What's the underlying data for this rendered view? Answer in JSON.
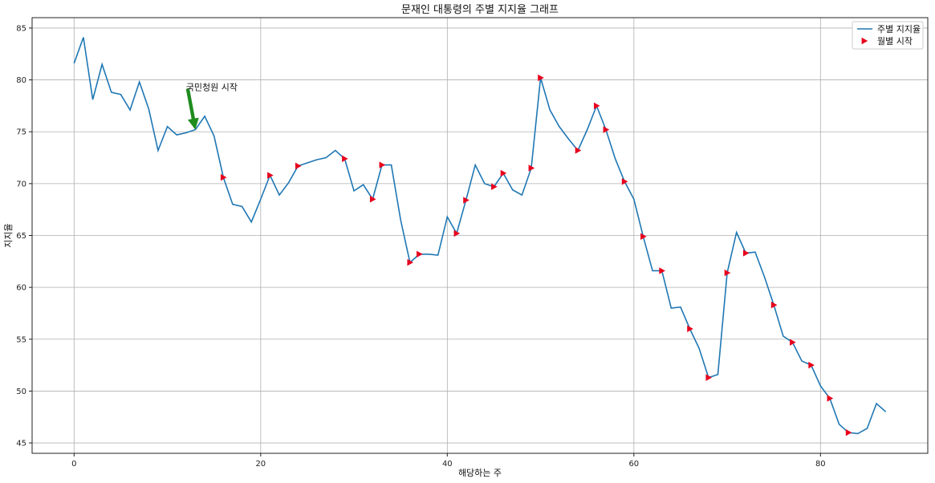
{
  "chart_data": {
    "type": "line",
    "title": "문재인 대통령의 주별 지지율 그래프",
    "xlabel": "해당하는 주",
    "ylabel": "지지율",
    "xlim": [
      -4.5,
      91.5
    ],
    "ylim": [
      44,
      86
    ],
    "xticks": [
      0,
      20,
      40,
      60,
      80
    ],
    "yticks": [
      45,
      50,
      55,
      60,
      65,
      70,
      75,
      80,
      85
    ],
    "grid": true,
    "legend_position": "top-right",
    "colors": {
      "line": "#1f77b4",
      "marker": "#e8001c",
      "arrow": "#1e8c1e",
      "grid": "#b0b0b0"
    },
    "series": [
      {
        "name": "주별 지지율",
        "values": [
          81.6,
          84.1,
          78.1,
          81.5,
          78.8,
          78.6,
          77.1,
          79.8,
          77.2,
          73.2,
          75.5,
          74.7,
          74.9,
          75.2,
          76.5,
          74.6,
          70.6,
          68.0,
          67.8,
          66.3,
          68.5,
          70.8,
          68.9,
          70.1,
          71.7,
          72.0,
          72.3,
          72.5,
          73.2,
          72.4,
          69.3,
          69.9,
          68.5,
          71.8,
          71.8,
          66.5,
          62.4,
          63.2,
          63.2,
          63.1,
          66.8,
          65.2,
          68.4,
          71.8,
          70.0,
          69.7,
          71.0,
          69.4,
          68.9,
          71.5,
          80.2,
          77.1,
          75.5,
          74.3,
          73.2,
          75.2,
          77.5,
          75.2,
          72.4,
          70.2,
          68.5,
          64.9,
          61.6,
          61.6,
          58.0,
          58.1,
          56.0,
          54.1,
          51.3,
          51.6,
          61.4,
          65.3,
          63.3,
          63.4,
          61.0,
          58.3,
          55.3,
          54.7,
          52.9,
          52.5,
          50.5,
          49.3,
          46.8,
          46.0,
          45.9,
          46.4,
          48.8,
          48.0
        ]
      },
      {
        "name": "월별 시작",
        "x": [
          16,
          21,
          24,
          29,
          32,
          33,
          36,
          37,
          41,
          42,
          45,
          46,
          49,
          50,
          54,
          56,
          57,
          59,
          61,
          63,
          66,
          68,
          70,
          72,
          75,
          77,
          79,
          81,
          83
        ],
        "y": [
          70.6,
          70.8,
          71.7,
          72.4,
          68.5,
          71.8,
          62.4,
          63.2,
          65.2,
          68.4,
          69.7,
          71.0,
          71.5,
          80.2,
          73.2,
          77.5,
          75.2,
          70.2,
          64.9,
          61.6,
          56.0,
          51.3,
          61.4,
          63.3,
          58.3,
          54.7,
          52.5,
          49.3,
          46.0
        ]
      }
    ],
    "annotation": {
      "text": "국민청원 시작",
      "x": 13,
      "y": 75.2,
      "text_x": 12,
      "text_y": 79
    }
  }
}
